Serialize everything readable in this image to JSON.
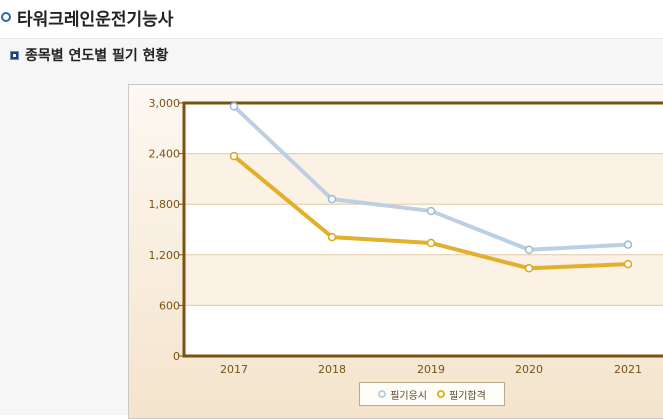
{
  "header": {
    "title": "타워크레인운전기능사"
  },
  "section": {
    "title": "종목별 연도별 필기 현황"
  },
  "colors": {
    "series_applicants": "#bdd0e2",
    "series_passers": "#e2b02a",
    "axis": "#7a5312"
  },
  "chart_data": {
    "type": "line",
    "title": "",
    "xlabel": "",
    "ylabel": "",
    "categories": [
      "2017",
      "2018",
      "2019",
      "2020",
      "2021"
    ],
    "ylim": [
      0,
      3000
    ],
    "yticks": [
      0,
      600,
      1200,
      1800,
      2400,
      3000
    ],
    "ytick_labels": [
      "0",
      "600",
      "1,200",
      "1,800",
      "2,400",
      "3,000"
    ],
    "series": [
      {
        "name": "필기응시",
        "values": [
          2960,
          1860,
          1720,
          1260,
          1320
        ]
      },
      {
        "name": "필기합격",
        "values": [
          2370,
          1410,
          1340,
          1040,
          1090
        ]
      }
    ],
    "grid": true,
    "legend_position": "bottom"
  }
}
